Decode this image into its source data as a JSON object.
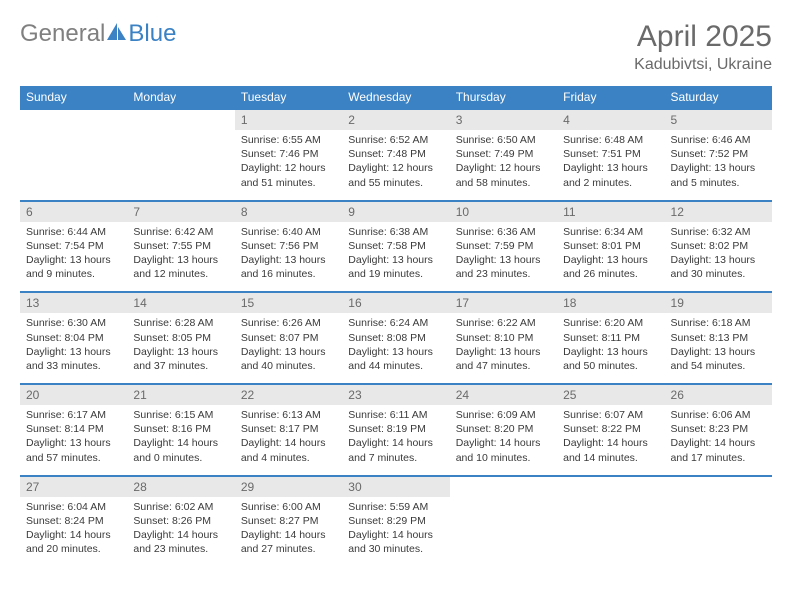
{
  "brand": {
    "part1": "General",
    "part2": "Blue"
  },
  "title": "April 2025",
  "location": "Kadubivtsi, Ukraine",
  "colors": {
    "accent": "#3b82c4",
    "header_text": "#6a6a6a",
    "daynum_bg": "#e8e8e8",
    "body_text": "#3a3a3a",
    "page_bg": "#ffffff"
  },
  "dow": [
    "Sunday",
    "Monday",
    "Tuesday",
    "Wednesday",
    "Thursday",
    "Friday",
    "Saturday"
  ],
  "weeks": [
    [
      null,
      null,
      {
        "n": "1",
        "sr": "6:55 AM",
        "ss": "7:46 PM",
        "dl": "12 hours and 51 minutes."
      },
      {
        "n": "2",
        "sr": "6:52 AM",
        "ss": "7:48 PM",
        "dl": "12 hours and 55 minutes."
      },
      {
        "n": "3",
        "sr": "6:50 AM",
        "ss": "7:49 PM",
        "dl": "12 hours and 58 minutes."
      },
      {
        "n": "4",
        "sr": "6:48 AM",
        "ss": "7:51 PM",
        "dl": "13 hours and 2 minutes."
      },
      {
        "n": "5",
        "sr": "6:46 AM",
        "ss": "7:52 PM",
        "dl": "13 hours and 5 minutes."
      }
    ],
    [
      {
        "n": "6",
        "sr": "6:44 AM",
        "ss": "7:54 PM",
        "dl": "13 hours and 9 minutes."
      },
      {
        "n": "7",
        "sr": "6:42 AM",
        "ss": "7:55 PM",
        "dl": "13 hours and 12 minutes."
      },
      {
        "n": "8",
        "sr": "6:40 AM",
        "ss": "7:56 PM",
        "dl": "13 hours and 16 minutes."
      },
      {
        "n": "9",
        "sr": "6:38 AM",
        "ss": "7:58 PM",
        "dl": "13 hours and 19 minutes."
      },
      {
        "n": "10",
        "sr": "6:36 AM",
        "ss": "7:59 PM",
        "dl": "13 hours and 23 minutes."
      },
      {
        "n": "11",
        "sr": "6:34 AM",
        "ss": "8:01 PM",
        "dl": "13 hours and 26 minutes."
      },
      {
        "n": "12",
        "sr": "6:32 AM",
        "ss": "8:02 PM",
        "dl": "13 hours and 30 minutes."
      }
    ],
    [
      {
        "n": "13",
        "sr": "6:30 AM",
        "ss": "8:04 PM",
        "dl": "13 hours and 33 minutes."
      },
      {
        "n": "14",
        "sr": "6:28 AM",
        "ss": "8:05 PM",
        "dl": "13 hours and 37 minutes."
      },
      {
        "n": "15",
        "sr": "6:26 AM",
        "ss": "8:07 PM",
        "dl": "13 hours and 40 minutes."
      },
      {
        "n": "16",
        "sr": "6:24 AM",
        "ss": "8:08 PM",
        "dl": "13 hours and 44 minutes."
      },
      {
        "n": "17",
        "sr": "6:22 AM",
        "ss": "8:10 PM",
        "dl": "13 hours and 47 minutes."
      },
      {
        "n": "18",
        "sr": "6:20 AM",
        "ss": "8:11 PM",
        "dl": "13 hours and 50 minutes."
      },
      {
        "n": "19",
        "sr": "6:18 AM",
        "ss": "8:13 PM",
        "dl": "13 hours and 54 minutes."
      }
    ],
    [
      {
        "n": "20",
        "sr": "6:17 AM",
        "ss": "8:14 PM",
        "dl": "13 hours and 57 minutes."
      },
      {
        "n": "21",
        "sr": "6:15 AM",
        "ss": "8:16 PM",
        "dl": "14 hours and 0 minutes."
      },
      {
        "n": "22",
        "sr": "6:13 AM",
        "ss": "8:17 PM",
        "dl": "14 hours and 4 minutes."
      },
      {
        "n": "23",
        "sr": "6:11 AM",
        "ss": "8:19 PM",
        "dl": "14 hours and 7 minutes."
      },
      {
        "n": "24",
        "sr": "6:09 AM",
        "ss": "8:20 PM",
        "dl": "14 hours and 10 minutes."
      },
      {
        "n": "25",
        "sr": "6:07 AM",
        "ss": "8:22 PM",
        "dl": "14 hours and 14 minutes."
      },
      {
        "n": "26",
        "sr": "6:06 AM",
        "ss": "8:23 PM",
        "dl": "14 hours and 17 minutes."
      }
    ],
    [
      {
        "n": "27",
        "sr": "6:04 AM",
        "ss": "8:24 PM",
        "dl": "14 hours and 20 minutes."
      },
      {
        "n": "28",
        "sr": "6:02 AM",
        "ss": "8:26 PM",
        "dl": "14 hours and 23 minutes."
      },
      {
        "n": "29",
        "sr": "6:00 AM",
        "ss": "8:27 PM",
        "dl": "14 hours and 27 minutes."
      },
      {
        "n": "30",
        "sr": "5:59 AM",
        "ss": "8:29 PM",
        "dl": "14 hours and 30 minutes."
      },
      null,
      null,
      null
    ]
  ],
  "labels": {
    "sunrise": "Sunrise: ",
    "sunset": "Sunset: ",
    "daylight": "Daylight: "
  }
}
